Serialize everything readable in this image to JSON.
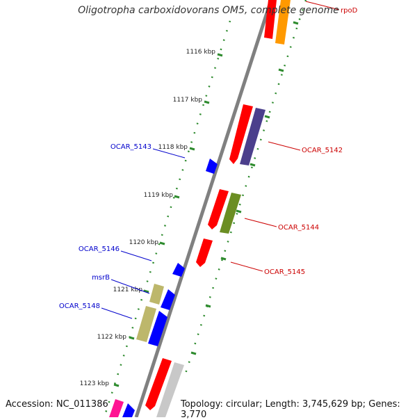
{
  "title": "Oligotropha carboxidovorans OM5, complete genome",
  "footer": {
    "accession": "Accession: NC_011386",
    "stats": "Topology: circular; Length: 3,745,629 bp; Genes: 3,770"
  },
  "ticks": [
    "1116 kbp",
    "1117 kbp",
    "1118 kbp",
    "1119 kbp",
    "1120 kbp",
    "1121 kbp",
    "1122 kbp",
    "1123 kbp"
  ],
  "gene_labels": [
    {
      "text": "rpoD",
      "strand": "reverse",
      "color": "#cc0000"
    },
    {
      "text": "OCAR_5142",
      "strand": "reverse",
      "color": "#cc0000"
    },
    {
      "text": "OCAR_5143",
      "strand": "forward",
      "color": "#0000cc"
    },
    {
      "text": "OCAR_5144",
      "strand": "reverse",
      "color": "#cc0000"
    },
    {
      "text": "OCAR_5145",
      "strand": "reverse",
      "color": "#cc0000"
    },
    {
      "text": "OCAR_5146",
      "strand": "forward",
      "color": "#0000cc"
    },
    {
      "text": "msrB",
      "strand": "forward",
      "color": "#0000cc"
    },
    {
      "text": "OCAR_5148",
      "strand": "forward",
      "color": "#0000cc"
    }
  ],
  "colors": {
    "backbone": "#808080",
    "tick_marks": "#2e8b2e",
    "forward_gene": "#0000ff",
    "reverse_gene": "#ff0000",
    "cog_orange": "#ff9900",
    "cog_purple": "#4b3f8c",
    "cog_olive": "#6b8e23",
    "cog_khaki": "#bdb76b",
    "cog_gray": "#c8c8c8",
    "cog_pink": "#ff1493"
  }
}
